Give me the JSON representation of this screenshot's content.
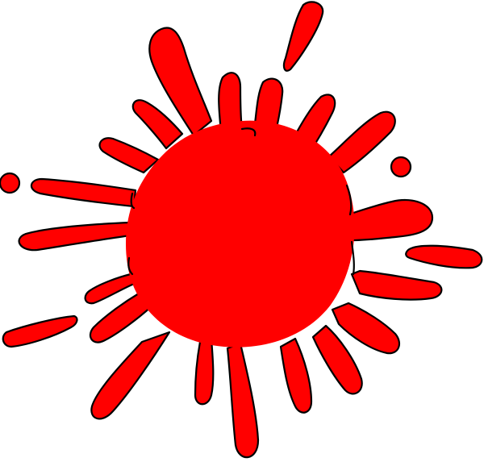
{
  "illustration": {
    "subject": "red-paint-splat",
    "fill_color": "#ff0000",
    "outline_color": "#000000",
    "background_color": "#ffffff"
  }
}
